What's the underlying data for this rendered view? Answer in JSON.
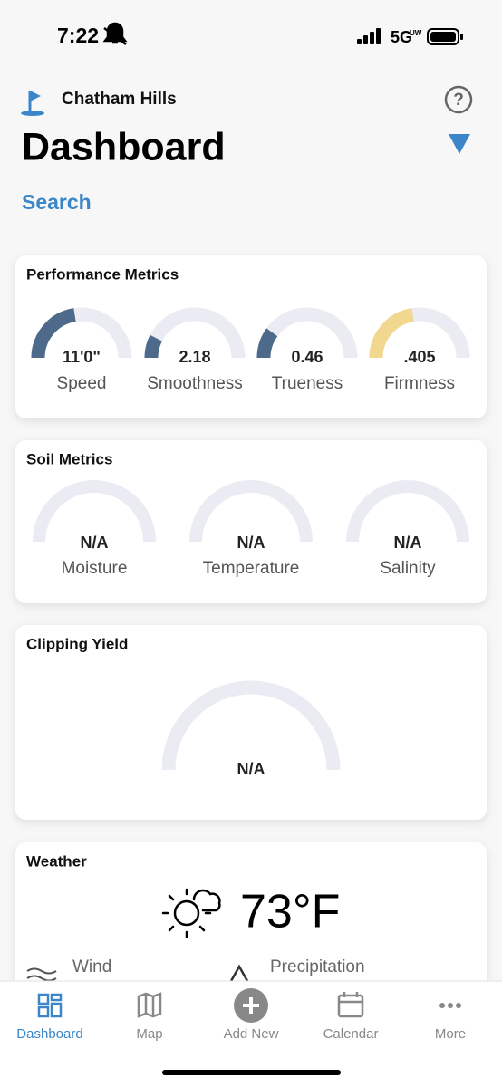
{
  "status_bar": {
    "time": "7:22",
    "network": "5G",
    "network_badge": "UW"
  },
  "header": {
    "course": "Chatham Hills",
    "title": "Dashboard",
    "search": "Search"
  },
  "cards": [
    {
      "title": "Performance Metrics",
      "gauges": [
        {
          "value": "11'0\"",
          "label": "Speed",
          "fill": 0.45,
          "color": "#4e6a8a"
        },
        {
          "value": "2.18",
          "label": "Smoothness",
          "fill": 0.15,
          "color": "#4e6a8a"
        },
        {
          "value": "0.46",
          "label": "Trueness",
          "fill": 0.2,
          "color": "#4e6a8a"
        },
        {
          "value": ".405",
          "label": "Firmness",
          "fill": 0.45,
          "color": "#f2d88f"
        }
      ]
    },
    {
      "title": "Soil Metrics",
      "gauges": [
        {
          "value": "N/A",
          "label": "Moisture"
        },
        {
          "value": "N/A",
          "label": "Temperature"
        },
        {
          "value": "N/A",
          "label": "Salinity"
        }
      ]
    },
    {
      "title": "Clipping Yield",
      "gauges": [
        {
          "value": "N/A"
        }
      ]
    }
  ],
  "weather": {
    "title": "Weather",
    "temperature": "73°F",
    "wind": "Wind",
    "precipitation": "Precipitation"
  },
  "tabs": [
    {
      "label": "Dashboard"
    },
    {
      "label": "Map"
    },
    {
      "label": "Add New"
    },
    {
      "label": "Calendar"
    },
    {
      "label": "More"
    }
  ]
}
